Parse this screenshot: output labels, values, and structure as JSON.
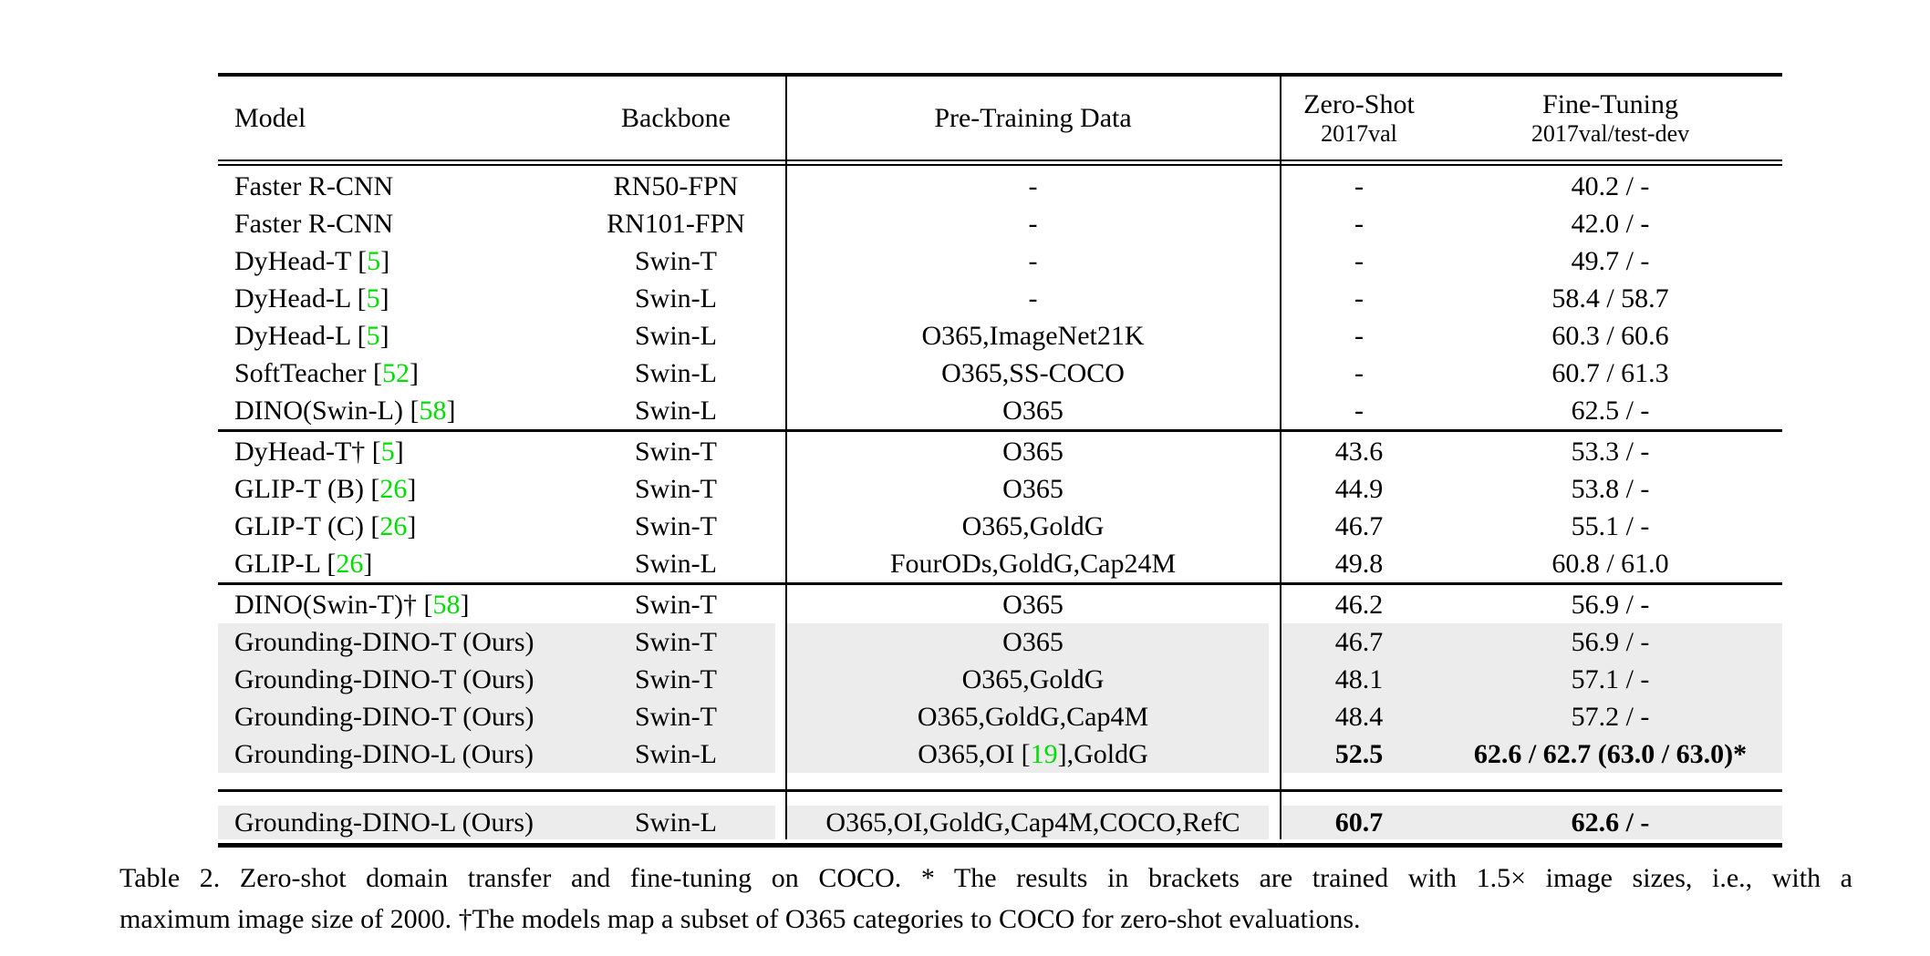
{
  "colors": {
    "citation_green": "#00DD00",
    "row_highlight": "#ECECEC",
    "rule_black": "#000000"
  },
  "table": {
    "header": {
      "col_model": "Model",
      "col_backbone": "Backbone",
      "col_pretrain": "Pre-Training Data",
      "col_zeroshot_line1": "Zero-Shot",
      "col_zeroshot_line2": "2017val",
      "col_finetune_line1": "Fine-Tuning",
      "col_finetune_line2": "2017val/test-dev"
    },
    "blocks": [
      {
        "rows": [
          {
            "model": [
              {
                "t": "Faster R-CNN"
              }
            ],
            "backbone": "RN50-FPN",
            "pretrain": [
              {
                "t": "-"
              }
            ],
            "zeroshot": "-",
            "finetune": "40.2 / -",
            "hl": false,
            "bold": false
          },
          {
            "model": [
              {
                "t": "Faster R-CNN"
              }
            ],
            "backbone": "RN101-FPN",
            "pretrain": [
              {
                "t": "-"
              }
            ],
            "zeroshot": "-",
            "finetune": "42.0 / -",
            "hl": false,
            "bold": false
          },
          {
            "model": [
              {
                "t": "DyHead-T ["
              },
              {
                "t": "5",
                "g": 1
              },
              {
                "t": "]"
              }
            ],
            "backbone": "Swin-T",
            "pretrain": [
              {
                "t": "-"
              }
            ],
            "zeroshot": "-",
            "finetune": "49.7 / -",
            "hl": false,
            "bold": false
          },
          {
            "model": [
              {
                "t": "DyHead-L ["
              },
              {
                "t": "5",
                "g": 1
              },
              {
                "t": "]"
              }
            ],
            "backbone": "Swin-L",
            "pretrain": [
              {
                "t": "-"
              }
            ],
            "zeroshot": "-",
            "finetune": "58.4 / 58.7",
            "hl": false,
            "bold": false
          },
          {
            "model": [
              {
                "t": "DyHead-L ["
              },
              {
                "t": "5",
                "g": 1
              },
              {
                "t": "]"
              }
            ],
            "backbone": "Swin-L",
            "pretrain": [
              {
                "t": "O365,ImageNet21K"
              }
            ],
            "zeroshot": "-",
            "finetune": "60.3 / 60.6",
            "hl": false,
            "bold": false
          },
          {
            "model": [
              {
                "t": "SoftTeacher ["
              },
              {
                "t": "52",
                "g": 1
              },
              {
                "t": "]"
              }
            ],
            "backbone": "Swin-L",
            "pretrain": [
              {
                "t": "O365,SS-COCO"
              }
            ],
            "zeroshot": "-",
            "finetune": "60.7 / 61.3",
            "hl": false,
            "bold": false
          },
          {
            "model": [
              {
                "t": "DINO(Swin-L) ["
              },
              {
                "t": "58",
                "g": 1
              },
              {
                "t": "]"
              }
            ],
            "backbone": "Swin-L",
            "pretrain": [
              {
                "t": "O365"
              }
            ],
            "zeroshot": "-",
            "finetune": "62.5 / -",
            "hl": false,
            "bold": false
          }
        ]
      },
      {
        "rows": [
          {
            "model": [
              {
                "t": "DyHead-T† ["
              },
              {
                "t": "5",
                "g": 1
              },
              {
                "t": "]"
              }
            ],
            "backbone": "Swin-T",
            "pretrain": [
              {
                "t": "O365"
              }
            ],
            "zeroshot": "43.6",
            "finetune": "53.3 / -",
            "hl": false,
            "bold": false
          },
          {
            "model": [
              {
                "t": "GLIP-T (B) ["
              },
              {
                "t": "26",
                "g": 1
              },
              {
                "t": "]"
              }
            ],
            "backbone": "Swin-T",
            "pretrain": [
              {
                "t": "O365"
              }
            ],
            "zeroshot": "44.9",
            "finetune": "53.8 / -",
            "hl": false,
            "bold": false
          },
          {
            "model": [
              {
                "t": "GLIP-T (C) ["
              },
              {
                "t": "26",
                "g": 1
              },
              {
                "t": "]"
              }
            ],
            "backbone": "Swin-T",
            "pretrain": [
              {
                "t": "O365,GoldG"
              }
            ],
            "zeroshot": "46.7",
            "finetune": "55.1 / -",
            "hl": false,
            "bold": false
          },
          {
            "model": [
              {
                "t": "GLIP-L ["
              },
              {
                "t": "26",
                "g": 1
              },
              {
                "t": "]"
              }
            ],
            "backbone": "Swin-L",
            "pretrain": [
              {
                "t": "FourODs,GoldG,Cap24M"
              }
            ],
            "zeroshot": "49.8",
            "finetune": "60.8 / 61.0",
            "hl": false,
            "bold": false
          }
        ]
      },
      {
        "rows": [
          {
            "model": [
              {
                "t": "DINO(Swin-T)† ["
              },
              {
                "t": "58",
                "g": 1
              },
              {
                "t": "]"
              }
            ],
            "backbone": "Swin-T",
            "pretrain": [
              {
                "t": "O365"
              }
            ],
            "zeroshot": "46.2",
            "finetune": "56.9 / -",
            "hl": false,
            "bold": false
          },
          {
            "model": [
              {
                "t": "Grounding-DINO-T (Ours)"
              }
            ],
            "backbone": "Swin-T",
            "pretrain": [
              {
                "t": "O365"
              }
            ],
            "zeroshot": "46.7",
            "finetune": "56.9 / -",
            "hl": true,
            "bold": false
          },
          {
            "model": [
              {
                "t": "Grounding-DINO-T (Ours)"
              }
            ],
            "backbone": "Swin-T",
            "pretrain": [
              {
                "t": "O365,GoldG"
              }
            ],
            "zeroshot": "48.1",
            "finetune": "57.1 / -",
            "hl": true,
            "bold": false
          },
          {
            "model": [
              {
                "t": "Grounding-DINO-T (Ours)"
              }
            ],
            "backbone": "Swin-T",
            "pretrain": [
              {
                "t": "O365,GoldG,Cap4M"
              }
            ],
            "zeroshot": "48.4",
            "finetune": "57.2 / -",
            "hl": true,
            "bold": false
          },
          {
            "model": [
              {
                "t": "Grounding-DINO-L (Ours)"
              }
            ],
            "backbone": "Swin-L",
            "pretrain": [
              {
                "t": "O365,OI ["
              },
              {
                "t": "19",
                "g": 1
              },
              {
                "t": "],GoldG"
              }
            ],
            "zeroshot": "52.5",
            "finetune": "62.6 / 62.7 (63.0 / 63.0)*",
            "hl": true,
            "bold": true
          }
        ]
      },
      {
        "rows": [
          {
            "model": [
              {
                "t": "Grounding-DINO-L (Ours)"
              }
            ],
            "backbone": "Swin-L",
            "pretrain": [
              {
                "t": "O365,OI,GoldG,Cap4M,COCO,RefC"
              }
            ],
            "zeroshot": "60.7",
            "finetune": "62.6 / -",
            "hl": true,
            "bold": true
          }
        ]
      }
    ]
  },
  "caption": {
    "line1": "Table 2. Zero-shot domain transfer and fine-tuning on COCO. * The results in brackets are trained with 1.5× image sizes, i.e., with a",
    "line2": "maximum image size of 2000. †The models map a subset of O365 categories to COCO for zero-shot evaluations."
  }
}
